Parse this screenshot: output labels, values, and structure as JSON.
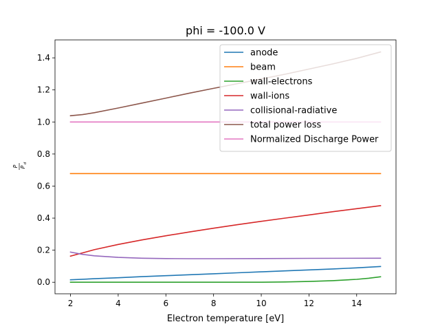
{
  "chart_data": {
    "type": "line",
    "title": "phi = -100.0 V",
    "xlabel": "Electron temperature [eV]",
    "ylabel": "P/P_d",
    "ylabel_num": "P",
    "ylabel_den": "P",
    "ylabel_den_sub": "d",
    "xlim": [
      1.35,
      15.65
    ],
    "ylim": [
      -0.072,
      1.512
    ],
    "xticks": [
      2,
      4,
      6,
      8,
      10,
      12,
      14
    ],
    "yticks": [
      0.0,
      0.2,
      0.4,
      0.6,
      0.8,
      1.0,
      1.2,
      1.4
    ],
    "xtick_labels": [
      "2",
      "4",
      "6",
      "8",
      "10",
      "12",
      "14"
    ],
    "ytick_labels": [
      "0.0",
      "0.2",
      "0.4",
      "0.6",
      "0.8",
      "1.0",
      "1.2",
      "1.4"
    ],
    "grid": false,
    "legend_position": "top-right",
    "series": [
      {
        "name": "anode",
        "color": "#1f77b4",
        "x": [
          2,
          3,
          4,
          5,
          6,
          7,
          8,
          9,
          10,
          11,
          12,
          13,
          14,
          15
        ],
        "y": [
          0.015,
          0.022,
          0.028,
          0.035,
          0.041,
          0.047,
          0.053,
          0.059,
          0.065,
          0.071,
          0.077,
          0.083,
          0.09,
          0.098
        ]
      },
      {
        "name": "beam",
        "color": "#ff7f0e",
        "x": [
          2,
          15
        ],
        "y": [
          0.678,
          0.678
        ]
      },
      {
        "name": "wall-electrons",
        "color": "#2ca02c",
        "x": [
          2,
          4,
          6,
          8,
          9,
          10,
          11,
          12,
          13,
          14,
          14.5,
          15
        ],
        "y": [
          0.0,
          0.0,
          0.0,
          0.0,
          0.0,
          0.0,
          0.002,
          0.005,
          0.01,
          0.018,
          0.025,
          0.034
        ]
      },
      {
        "name": "wall-ions",
        "color": "#d62728",
        "x": [
          2,
          3,
          4,
          5,
          6,
          7,
          8,
          9,
          10,
          11,
          12,
          13,
          14,
          15
        ],
        "y": [
          0.163,
          0.203,
          0.236,
          0.264,
          0.29,
          0.314,
          0.337,
          0.359,
          0.38,
          0.4,
          0.42,
          0.44,
          0.459,
          0.478
        ]
      },
      {
        "name": "collisional-radiative",
        "color": "#9467bd",
        "x": [
          2,
          2.5,
          3,
          4,
          5,
          6,
          7,
          8,
          10,
          12,
          15
        ],
        "y": [
          0.188,
          0.174,
          0.165,
          0.155,
          0.15,
          0.148,
          0.147,
          0.147,
          0.148,
          0.149,
          0.15
        ]
      },
      {
        "name": "total power loss",
        "color": "#8c564b",
        "x": [
          2,
          2.5,
          3,
          4,
          5,
          6,
          7,
          8,
          9,
          10,
          11,
          12,
          13,
          14,
          15
        ],
        "y": [
          1.039,
          1.046,
          1.058,
          1.087,
          1.118,
          1.149,
          1.18,
          1.21,
          1.239,
          1.268,
          1.298,
          1.33,
          1.362,
          1.397,
          1.437
        ]
      },
      {
        "name": "Normalized Discharge Power",
        "color": "#e377c2",
        "x": [
          2,
          15
        ],
        "y": [
          1.0,
          1.0
        ]
      }
    ]
  }
}
